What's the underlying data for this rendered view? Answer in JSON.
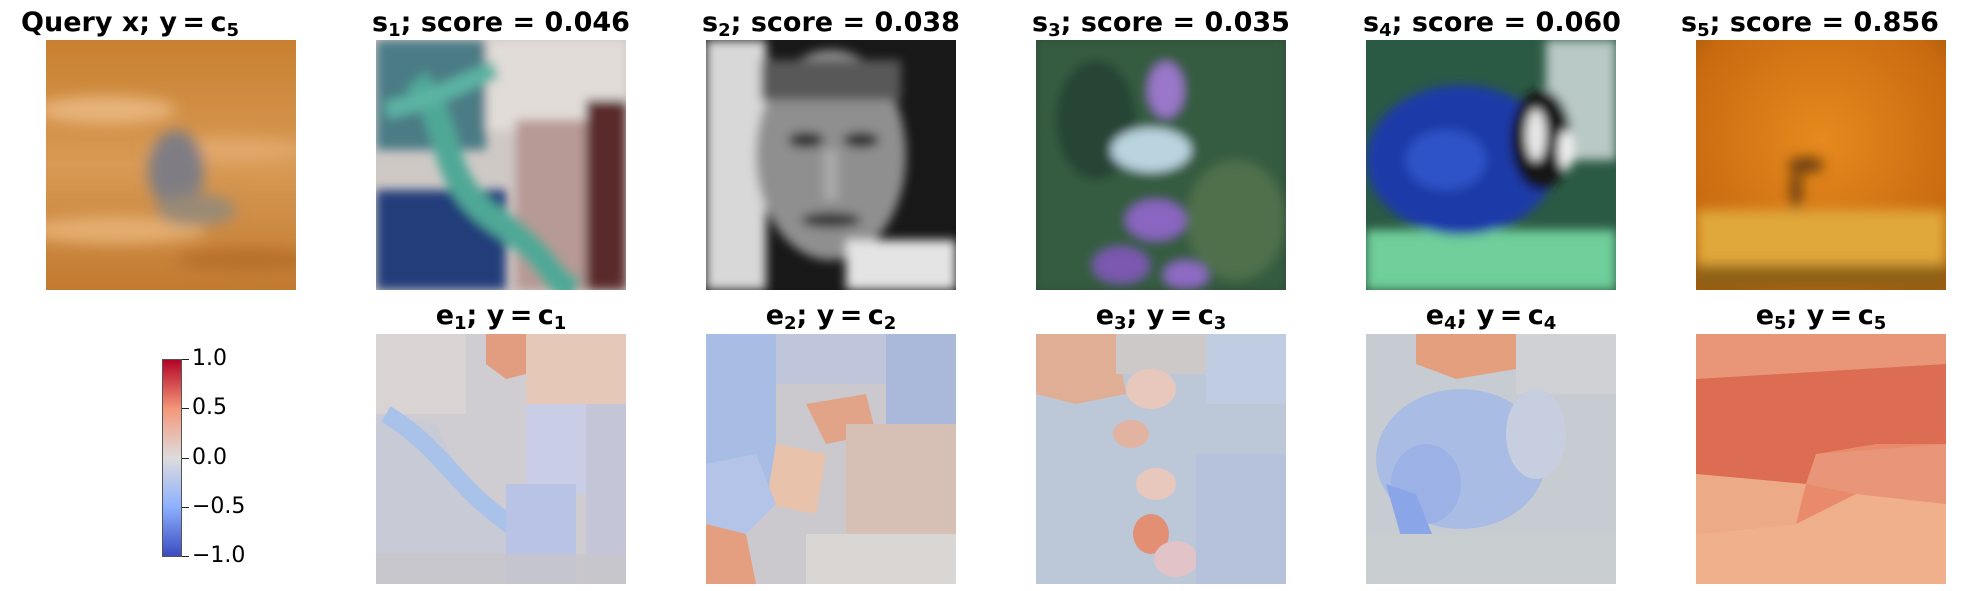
{
  "query": {
    "title_main": "Query x; y = c",
    "title_sub": "5",
    "image": "query-image"
  },
  "similar": [
    {
      "title_s": "s",
      "title_sub": "1",
      "title_rest": "; score = 0.046",
      "image": "similar-image-1"
    },
    {
      "title_s": "s",
      "title_sub": "2",
      "title_rest": "; score = 0.038",
      "image": "similar-image-2"
    },
    {
      "title_s": "s",
      "title_sub": "3",
      "title_rest": "; score = 0.035",
      "image": "similar-image-3"
    },
    {
      "title_s": "s",
      "title_sub": "4",
      "title_rest": "; score = 0.060",
      "image": "similar-image-4"
    },
    {
      "title_s": "s",
      "title_sub": "5",
      "title_rest": "; score = 0.856",
      "image": "similar-image-5"
    }
  ],
  "explanations": [
    {
      "title_e": "e",
      "title_sub": "1",
      "title_mid": "; y = c",
      "title_sub2": "1"
    },
    {
      "title_e": "e",
      "title_sub": "2",
      "title_mid": "; y = c",
      "title_sub2": "2"
    },
    {
      "title_e": "e",
      "title_sub": "3",
      "title_mid": "; y = c",
      "title_sub2": "3"
    },
    {
      "title_e": "e",
      "title_sub": "4",
      "title_mid": "; y = c",
      "title_sub2": "4"
    },
    {
      "title_e": "e",
      "title_sub": "5",
      "title_mid": "; y = c",
      "title_sub2": "5"
    }
  ],
  "colorbar": {
    "ticks": [
      "1.0",
      "0.5",
      "0.0",
      "−0.5",
      "−1.0"
    ],
    "colors": {
      "high": "#b40426",
      "mid": "#dddcdc",
      "low": "#3b4cc0"
    }
  }
}
